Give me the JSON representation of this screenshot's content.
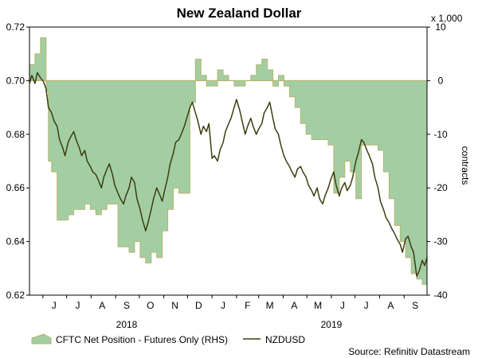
{
  "chart_data": {
    "type": "area+line",
    "title": "New Zealand Dollar",
    "source": "Source: Refinitiv Datastream",
    "left_axis": {
      "min": 0.62,
      "max": 0.72,
      "ticks": [
        "0.72",
        "0.70",
        "0.68",
        "0.66",
        "0.64",
        "0.62"
      ]
    },
    "right_axis": {
      "min": -40,
      "max": 10,
      "ticks": [
        "10",
        "0",
        "-10",
        "-20",
        "-30",
        "-40"
      ],
      "unit_label": "x 1,000",
      "label": "contracts"
    },
    "x_axis": {
      "start": "2018-05-15",
      "end": "2019-09-30",
      "months": [
        {
          "label": "J",
          "date": "2018-06-15"
        },
        {
          "label": "J",
          "date": "2018-07-15"
        },
        {
          "label": "A",
          "date": "2018-08-15"
        },
        {
          "label": "S",
          "date": "2018-09-15"
        },
        {
          "label": "O",
          "date": "2018-10-15"
        },
        {
          "label": "N",
          "date": "2018-11-15"
        },
        {
          "label": "D",
          "date": "2018-12-15"
        },
        {
          "label": "J",
          "date": "2019-01-15"
        },
        {
          "label": "F",
          "date": "2019-02-15"
        },
        {
          "label": "M",
          "date": "2019-03-15"
        },
        {
          "label": "A",
          "date": "2019-04-15"
        },
        {
          "label": "M",
          "date": "2019-05-15"
        },
        {
          "label": "J",
          "date": "2019-06-15"
        },
        {
          "label": "J",
          "date": "2019-07-15"
        },
        {
          "label": "A",
          "date": "2019-08-15"
        },
        {
          "label": "S",
          "date": "2019-09-15"
        }
      ],
      "years": [
        {
          "label": "2018",
          "date": "2018-09-15"
        },
        {
          "label": "2019",
          "date": "2019-06-01"
        }
      ]
    },
    "legend": {
      "position": "bottom",
      "cftc_label": "CFTC Net Position - Futures Only (RHS)",
      "nzd_label": "NZDUSD"
    },
    "series": [
      {
        "name": "CFTC Net Position - Futures Only (RHS)",
        "axis": "right",
        "color": "#a3cea3",
        "edge_color": "#b4b46e",
        "step": true,
        "points": [
          [
            "2018-05-15",
            3
          ],
          [
            "2018-05-22",
            5
          ],
          [
            "2018-05-29",
            8
          ],
          [
            "2018-06-05",
            -2
          ],
          [
            "2018-06-08",
            -15
          ],
          [
            "2018-06-12",
            -17
          ],
          [
            "2018-06-19",
            -26
          ],
          [
            "2018-06-26",
            -26
          ],
          [
            "2018-07-03",
            -25
          ],
          [
            "2018-07-10",
            -24
          ],
          [
            "2018-07-17",
            -24
          ],
          [
            "2018-07-24",
            -23
          ],
          [
            "2018-07-31",
            -24
          ],
          [
            "2018-08-07",
            -25
          ],
          [
            "2018-08-14",
            -24
          ],
          [
            "2018-08-21",
            -23
          ],
          [
            "2018-08-28",
            -23
          ],
          [
            "2018-09-04",
            -31
          ],
          [
            "2018-09-11",
            -31
          ],
          [
            "2018-09-18",
            -32
          ],
          [
            "2018-09-25",
            -30
          ],
          [
            "2018-10-02",
            -33
          ],
          [
            "2018-10-09",
            -34
          ],
          [
            "2018-10-16",
            -32
          ],
          [
            "2018-10-23",
            -33
          ],
          [
            "2018-10-30",
            -28
          ],
          [
            "2018-11-06",
            -24
          ],
          [
            "2018-11-13",
            -20
          ],
          [
            "2018-11-20",
            -21
          ],
          [
            "2018-11-27",
            -21
          ],
          [
            "2018-12-04",
            -4
          ],
          [
            "2018-12-11",
            4
          ],
          [
            "2018-12-18",
            1
          ],
          [
            "2018-12-25",
            -1
          ],
          [
            "2019-01-01",
            -1
          ],
          [
            "2019-01-08",
            2
          ],
          [
            "2019-01-15",
            1
          ],
          [
            "2019-01-22",
            0
          ],
          [
            "2019-01-29",
            -1
          ],
          [
            "2019-02-05",
            -1
          ],
          [
            "2019-02-12",
            0
          ],
          [
            "2019-02-19",
            1
          ],
          [
            "2019-02-26",
            3
          ],
          [
            "2019-03-05",
            4
          ],
          [
            "2019-03-12",
            2
          ],
          [
            "2019-03-19",
            -1
          ],
          [
            "2019-03-26",
            1
          ],
          [
            "2019-04-02",
            -1
          ],
          [
            "2019-04-09",
            -3
          ],
          [
            "2019-04-16",
            -5
          ],
          [
            "2019-04-23",
            -8
          ],
          [
            "2019-04-30",
            -10
          ],
          [
            "2019-05-07",
            -11
          ],
          [
            "2019-05-14",
            -11
          ],
          [
            "2019-05-21",
            -11
          ],
          [
            "2019-05-28",
            -12
          ],
          [
            "2019-06-04",
            -21
          ],
          [
            "2019-06-11",
            -18
          ],
          [
            "2019-06-18",
            -15
          ],
          [
            "2019-06-25",
            -17
          ],
          [
            "2019-07-02",
            -22
          ],
          [
            "2019-07-09",
            -12
          ],
          [
            "2019-07-16",
            -12
          ],
          [
            "2019-07-23",
            -12
          ],
          [
            "2019-07-30",
            -13
          ],
          [
            "2019-08-06",
            -17
          ],
          [
            "2019-08-13",
            -22
          ],
          [
            "2019-08-20",
            -27
          ],
          [
            "2019-08-27",
            -30
          ],
          [
            "2019-09-03",
            -33
          ],
          [
            "2019-09-10",
            -36
          ],
          [
            "2019-09-17",
            -37
          ],
          [
            "2019-09-24",
            -38
          ],
          [
            "2019-09-30",
            -38
          ]
        ]
      },
      {
        "name": "NZDUSD",
        "axis": "left",
        "color": "#3d3d12",
        "points": [
          [
            "2018-05-15",
            0.699
          ],
          [
            "2018-05-18",
            0.702
          ],
          [
            "2018-05-22",
            0.699
          ],
          [
            "2018-05-25",
            0.703
          ],
          [
            "2018-05-29",
            0.701
          ],
          [
            "2018-06-01",
            0.7
          ],
          [
            "2018-06-05",
            0.697
          ],
          [
            "2018-06-08",
            0.69
          ],
          [
            "2018-06-12",
            0.688
          ],
          [
            "2018-06-15",
            0.685
          ],
          [
            "2018-06-19",
            0.683
          ],
          [
            "2018-06-22",
            0.678
          ],
          [
            "2018-06-26",
            0.675
          ],
          [
            "2018-06-29",
            0.672
          ],
          [
            "2018-07-03",
            0.677
          ],
          [
            "2018-07-06",
            0.679
          ],
          [
            "2018-07-10",
            0.681
          ],
          [
            "2018-07-13",
            0.678
          ],
          [
            "2018-07-17",
            0.675
          ],
          [
            "2018-07-20",
            0.672
          ],
          [
            "2018-07-24",
            0.674
          ],
          [
            "2018-07-27",
            0.67
          ],
          [
            "2018-07-31",
            0.668
          ],
          [
            "2018-08-03",
            0.666
          ],
          [
            "2018-08-07",
            0.665
          ],
          [
            "2018-08-10",
            0.663
          ],
          [
            "2018-08-14",
            0.66
          ],
          [
            "2018-08-17",
            0.664
          ],
          [
            "2018-08-21",
            0.667
          ],
          [
            "2018-08-24",
            0.669
          ],
          [
            "2018-08-28",
            0.665
          ],
          [
            "2018-08-31",
            0.661
          ],
          [
            "2018-09-04",
            0.658
          ],
          [
            "2018-09-07",
            0.656
          ],
          [
            "2018-09-11",
            0.654
          ],
          [
            "2018-09-14",
            0.657
          ],
          [
            "2018-09-18",
            0.66
          ],
          [
            "2018-09-21",
            0.664
          ],
          [
            "2018-09-25",
            0.662
          ],
          [
            "2018-09-28",
            0.656
          ],
          [
            "2018-10-02",
            0.652
          ],
          [
            "2018-10-05",
            0.648
          ],
          [
            "2018-10-09",
            0.644
          ],
          [
            "2018-10-12",
            0.647
          ],
          [
            "2018-10-16",
            0.652
          ],
          [
            "2018-10-19",
            0.656
          ],
          [
            "2018-10-23",
            0.66
          ],
          [
            "2018-10-26",
            0.658
          ],
          [
            "2018-10-30",
            0.655
          ],
          [
            "2018-11-02",
            0.659
          ],
          [
            "2018-11-06",
            0.664
          ],
          [
            "2018-11-09",
            0.669
          ],
          [
            "2018-11-13",
            0.673
          ],
          [
            "2018-11-16",
            0.677
          ],
          [
            "2018-11-20",
            0.678
          ],
          [
            "2018-11-23",
            0.68
          ],
          [
            "2018-11-27",
            0.683
          ],
          [
            "2018-11-30",
            0.686
          ],
          [
            "2018-12-04",
            0.69
          ],
          [
            "2018-12-07",
            0.692
          ],
          [
            "2018-12-11",
            0.688
          ],
          [
            "2018-12-14",
            0.685
          ],
          [
            "2018-12-18",
            0.68
          ],
          [
            "2018-12-21",
            0.683
          ],
          [
            "2018-12-25",
            0.681
          ],
          [
            "2018-12-28",
            0.684
          ],
          [
            "2019-01-01",
            0.671
          ],
          [
            "2019-01-04",
            0.672
          ],
          [
            "2019-01-08",
            0.67
          ],
          [
            "2019-01-11",
            0.674
          ],
          [
            "2019-01-15",
            0.677
          ],
          [
            "2019-01-18",
            0.681
          ],
          [
            "2019-01-22",
            0.684
          ],
          [
            "2019-01-25",
            0.686
          ],
          [
            "2019-01-29",
            0.69
          ],
          [
            "2019-02-01",
            0.693
          ],
          [
            "2019-02-05",
            0.689
          ],
          [
            "2019-02-08",
            0.685
          ],
          [
            "2019-02-12",
            0.68
          ],
          [
            "2019-02-15",
            0.683
          ],
          [
            "2019-02-19",
            0.686
          ],
          [
            "2019-02-22",
            0.683
          ],
          [
            "2019-02-26",
            0.68
          ],
          [
            "2019-03-01",
            0.682
          ],
          [
            "2019-03-05",
            0.684
          ],
          [
            "2019-03-08",
            0.688
          ],
          [
            "2019-03-12",
            0.69
          ],
          [
            "2019-03-15",
            0.692
          ],
          [
            "2019-03-19",
            0.686
          ],
          [
            "2019-03-22",
            0.682
          ],
          [
            "2019-03-26",
            0.68
          ],
          [
            "2019-03-29",
            0.676
          ],
          [
            "2019-04-02",
            0.672
          ],
          [
            "2019-04-05",
            0.67
          ],
          [
            "2019-04-09",
            0.668
          ],
          [
            "2019-04-12",
            0.666
          ],
          [
            "2019-04-16",
            0.664
          ],
          [
            "2019-04-19",
            0.667
          ],
          [
            "2019-04-23",
            0.668
          ],
          [
            "2019-04-26",
            0.666
          ],
          [
            "2019-04-30",
            0.664
          ],
          [
            "2019-05-03",
            0.661
          ],
          [
            "2019-05-07",
            0.659
          ],
          [
            "2019-05-10",
            0.657
          ],
          [
            "2019-05-14",
            0.66
          ],
          [
            "2019-05-17",
            0.656
          ],
          [
            "2019-05-21",
            0.654
          ],
          [
            "2019-05-24",
            0.657
          ],
          [
            "2019-05-28",
            0.66
          ],
          [
            "2019-05-31",
            0.663
          ],
          [
            "2019-06-04",
            0.666
          ],
          [
            "2019-06-07",
            0.661
          ],
          [
            "2019-06-11",
            0.657
          ],
          [
            "2019-06-14",
            0.66
          ],
          [
            "2019-06-18",
            0.662
          ],
          [
            "2019-06-21",
            0.659
          ],
          [
            "2019-06-25",
            0.661
          ],
          [
            "2019-06-28",
            0.664
          ],
          [
            "2019-07-02",
            0.67
          ],
          [
            "2019-07-05",
            0.673
          ],
          [
            "2019-07-09",
            0.678
          ],
          [
            "2019-07-12",
            0.677
          ],
          [
            "2019-07-16",
            0.674
          ],
          [
            "2019-07-19",
            0.672
          ],
          [
            "2019-07-23",
            0.669
          ],
          [
            "2019-07-26",
            0.664
          ],
          [
            "2019-07-30",
            0.66
          ],
          [
            "2019-08-02",
            0.655
          ],
          [
            "2019-08-06",
            0.652
          ],
          [
            "2019-08-09",
            0.649
          ],
          [
            "2019-08-13",
            0.647
          ],
          [
            "2019-08-16",
            0.645
          ],
          [
            "2019-08-20",
            0.643
          ],
          [
            "2019-08-23",
            0.641
          ],
          [
            "2019-08-27",
            0.639
          ],
          [
            "2019-08-30",
            0.636
          ],
          [
            "2019-09-03",
            0.641
          ],
          [
            "2019-09-06",
            0.642
          ],
          [
            "2019-09-10",
            0.638
          ],
          [
            "2019-09-13",
            0.636
          ],
          [
            "2019-09-17",
            0.627
          ],
          [
            "2019-09-20",
            0.629
          ],
          [
            "2019-09-24",
            0.633
          ],
          [
            "2019-09-27",
            0.631
          ],
          [
            "2019-09-30",
            0.634
          ]
        ]
      }
    ],
    "grid": false,
    "baseline_color": "#b4b46e"
  }
}
